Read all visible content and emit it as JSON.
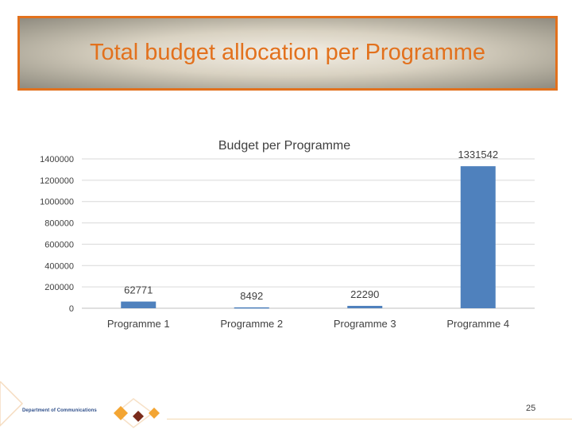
{
  "slide": {
    "title": "Total budget allocation per Programme",
    "page_number": "25",
    "footer_org": "Department of Communications"
  },
  "colors": {
    "accent": "#e2711d",
    "bar": "#4f81bd",
    "grid": "#d9d9d9",
    "text": "#404040"
  },
  "chart_data": {
    "type": "bar",
    "title": "Budget per Programme",
    "categories": [
      "Programme 1",
      "Programme 2",
      "Programme 3",
      "Programme 4"
    ],
    "values": [
      62771,
      8492,
      22290,
      1331542
    ],
    "data_labels": [
      "62771",
      "8492",
      "22290",
      "1331542"
    ],
    "y_ticks": [
      0,
      200000,
      400000,
      600000,
      800000,
      1000000,
      1200000,
      1400000
    ],
    "ylim": [
      0,
      1400000
    ],
    "grid": true,
    "legend": "none"
  }
}
